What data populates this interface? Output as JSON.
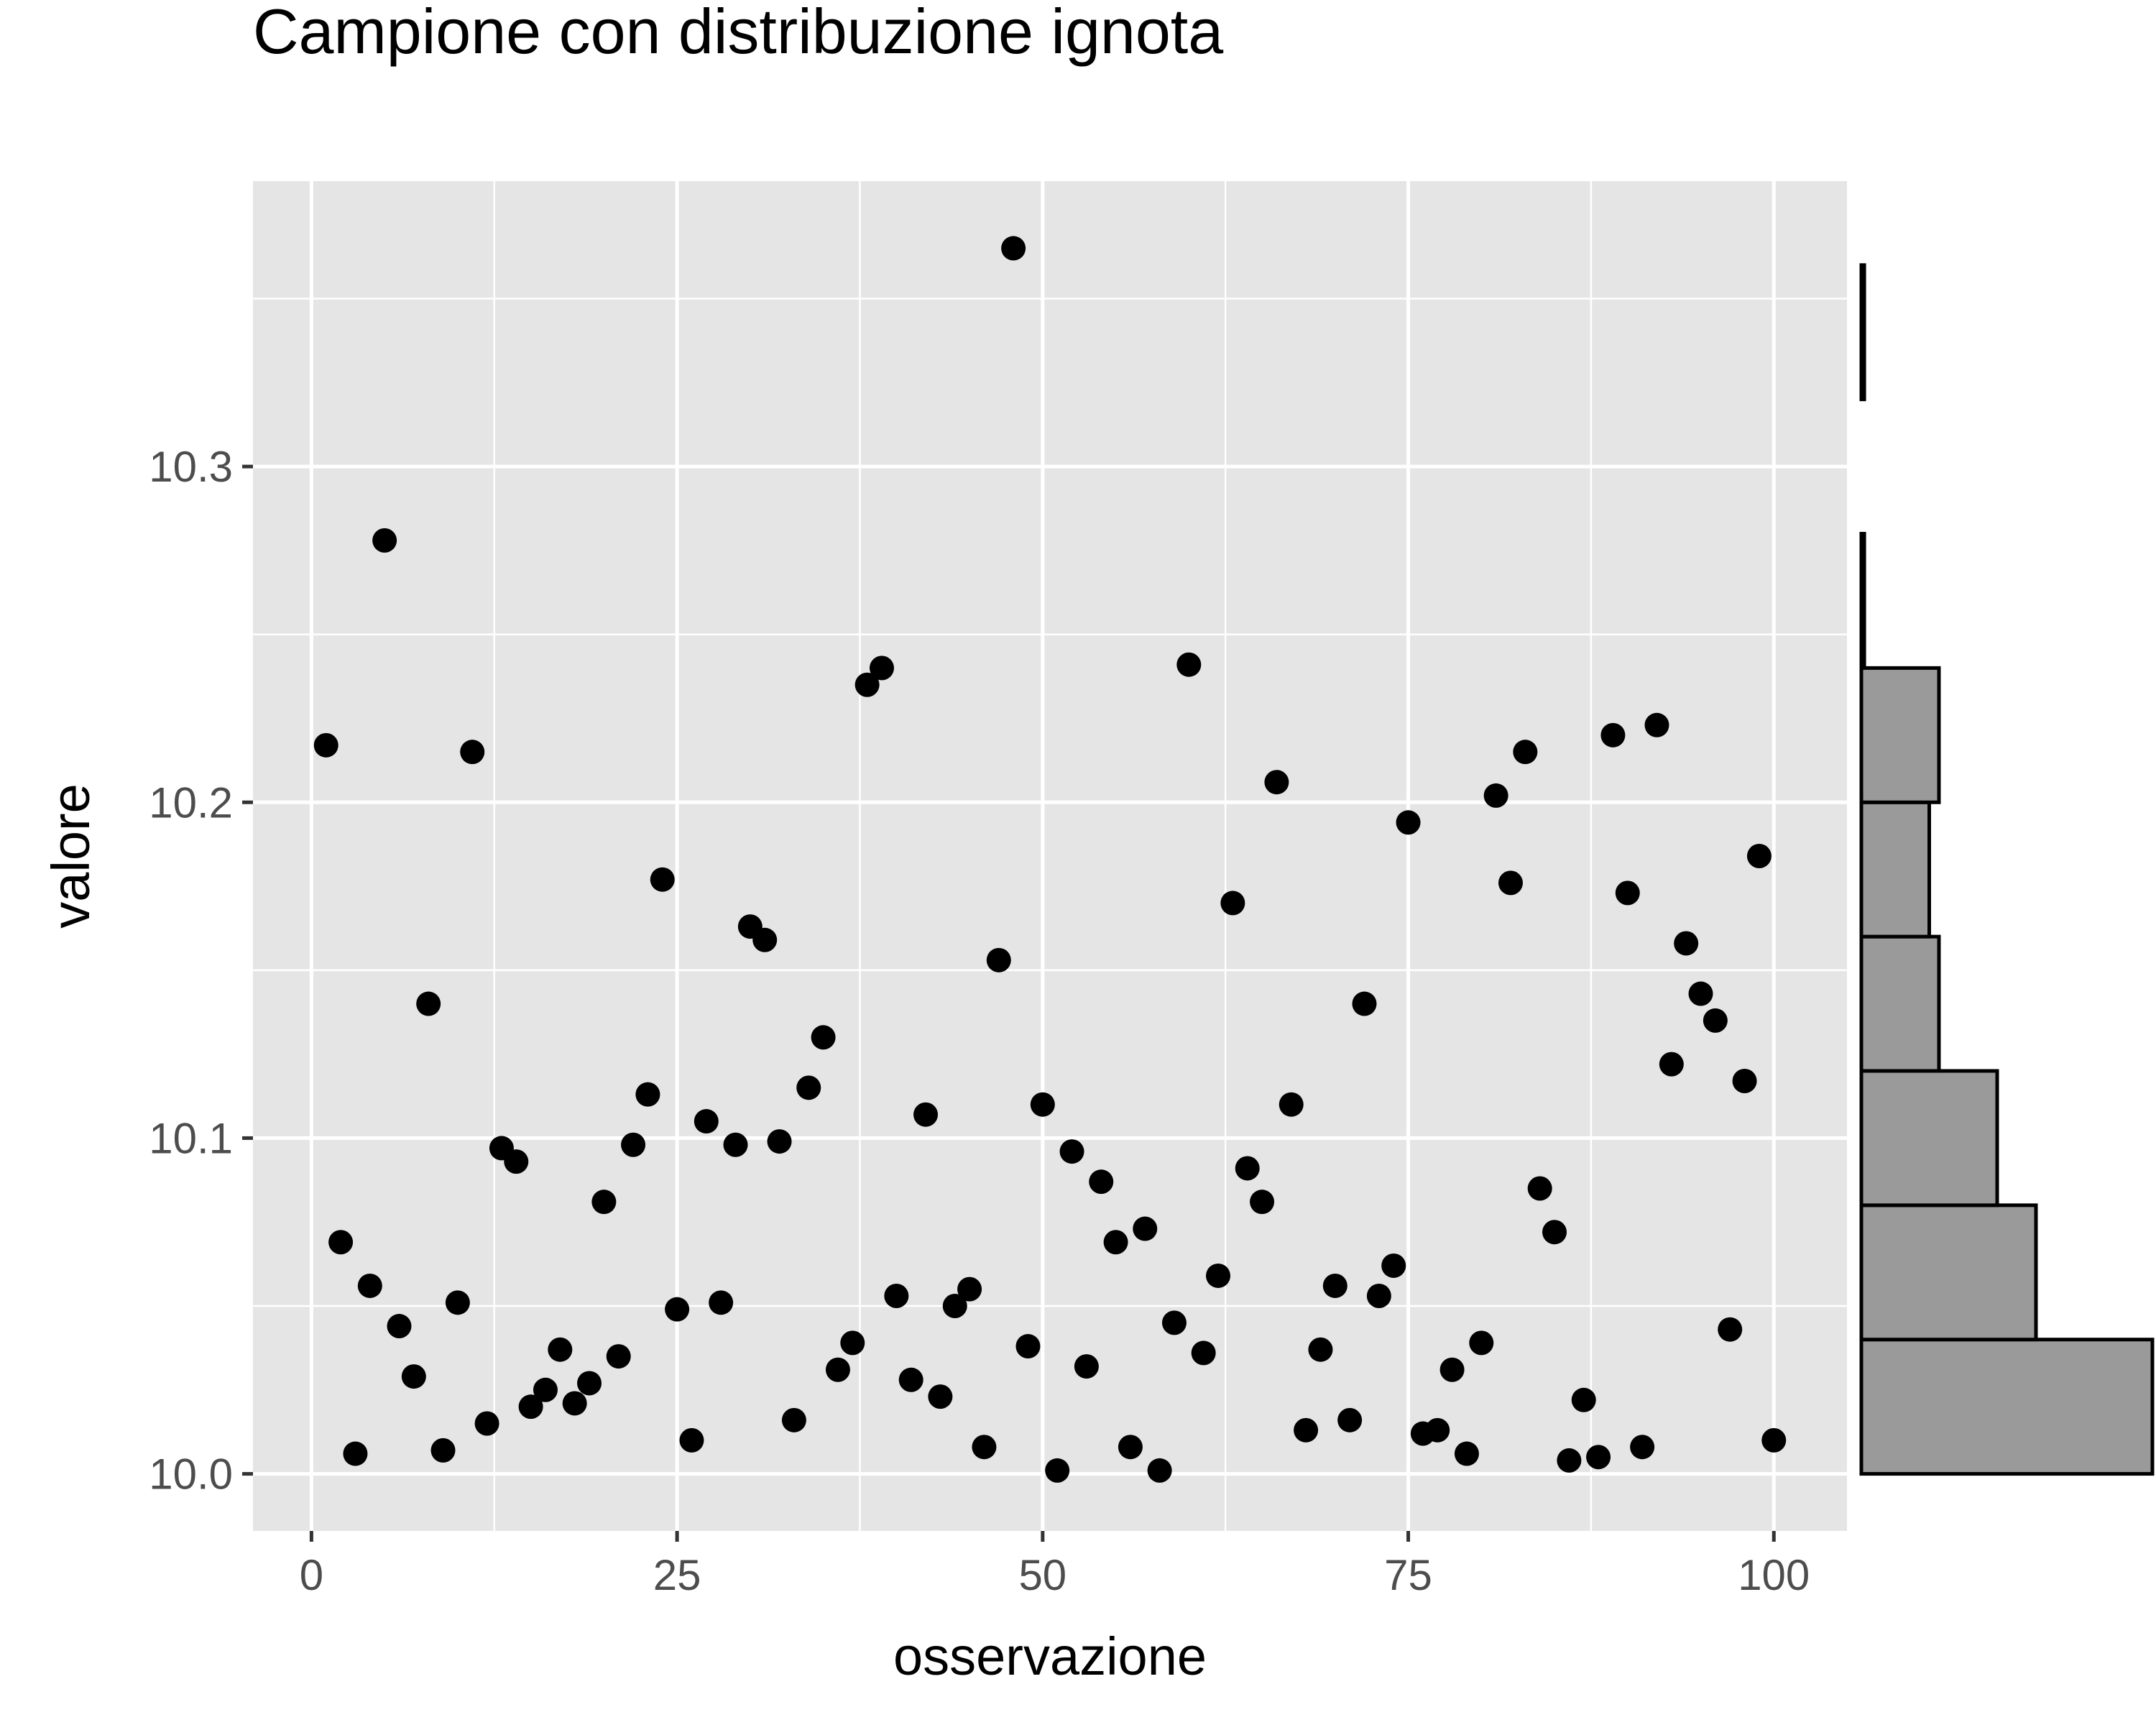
{
  "chart_data": {
    "type": "scatter",
    "title": "Campione con distribuzione ignota",
    "xlabel": "osservazione",
    "ylabel": "valore",
    "xlim": [
      -4,
      105
    ],
    "ylim": [
      9.983,
      10.385
    ],
    "x_ticks": [
      0,
      25,
      50,
      75,
      100
    ],
    "x_tick_labels": [
      "0",
      "25",
      "50",
      "75",
      "100"
    ],
    "y_ticks": [
      10.0,
      10.1,
      10.2,
      10.3
    ],
    "y_tick_labels": [
      "10.0",
      "10.1",
      "10.2",
      "10.3"
    ],
    "grid": true,
    "x": [
      1,
      2,
      3,
      4,
      5,
      6,
      7,
      8,
      9,
      10,
      11,
      12,
      13,
      14,
      15,
      16,
      17,
      18,
      19,
      20,
      21,
      22,
      23,
      24,
      25,
      26,
      27,
      28,
      29,
      30,
      31,
      32,
      33,
      34,
      35,
      36,
      37,
      38,
      39,
      40,
      41,
      42,
      43,
      44,
      45,
      46,
      47,
      48,
      49,
      50,
      51,
      52,
      53,
      54,
      55,
      56,
      57,
      58,
      59,
      60,
      61,
      62,
      63,
      64,
      65,
      66,
      67,
      68,
      69,
      70,
      71,
      72,
      73,
      74,
      75,
      76,
      77,
      78,
      79,
      80,
      81,
      82,
      83,
      84,
      85,
      86,
      87,
      88,
      89,
      90,
      91,
      92,
      93,
      94,
      95,
      96,
      97,
      98,
      99,
      100
    ],
    "y": [
      10.217,
      10.069,
      10.006,
      10.056,
      10.278,
      10.044,
      10.029,
      10.14,
      10.007,
      10.051,
      10.215,
      10.015,
      10.097,
      10.093,
      10.02,
      10.025,
      10.037,
      10.021,
      10.027,
      10.081,
      10.035,
      10.098,
      10.113,
      10.177,
      10.049,
      10.01,
      10.105,
      10.051,
      10.098,
      10.163,
      10.159,
      10.099,
      10.016,
      10.115,
      10.13,
      10.031,
      10.039,
      10.235,
      10.24,
      10.053,
      10.028,
      10.107,
      10.023,
      10.05,
      10.055,
      10.008,
      10.153,
      10.365,
      10.038,
      10.11,
      10.001,
      10.096,
      10.032,
      10.087,
      10.069,
      10.008,
      10.073,
      10.001,
      10.045,
      10.241,
      10.036,
      10.059,
      10.17,
      10.091,
      10.081,
      10.206,
      10.11,
      10.013,
      10.037,
      10.056,
      10.016,
      10.14,
      10.053,
      10.062,
      10.194,
      10.012,
      10.013,
      10.031,
      10.006,
      10.039,
      10.202,
      10.176,
      10.215,
      10.085,
      10.072,
      10.004,
      10.022,
      10.005,
      10.22,
      10.173,
      10.008,
      10.223,
      10.122,
      10.158,
      10.143,
      10.135,
      10.043,
      10.117,
      10.184,
      10.01
    ],
    "marginal_histogram": {
      "orientation": "horizontal",
      "bin_edges": [
        10.0,
        10.04,
        10.08,
        10.12,
        10.16,
        10.2,
        10.24,
        10.28,
        10.32,
        10.36
      ],
      "counts": [
        30,
        18,
        14,
        8,
        7,
        8,
        0.3,
        0,
        0.3
      ]
    }
  },
  "colors": {
    "panel_background": "#e5e5e5",
    "grid": "#ffffff",
    "points": "#000000",
    "histogram_fill": "#9a9a9a",
    "histogram_outline": "#000000"
  }
}
